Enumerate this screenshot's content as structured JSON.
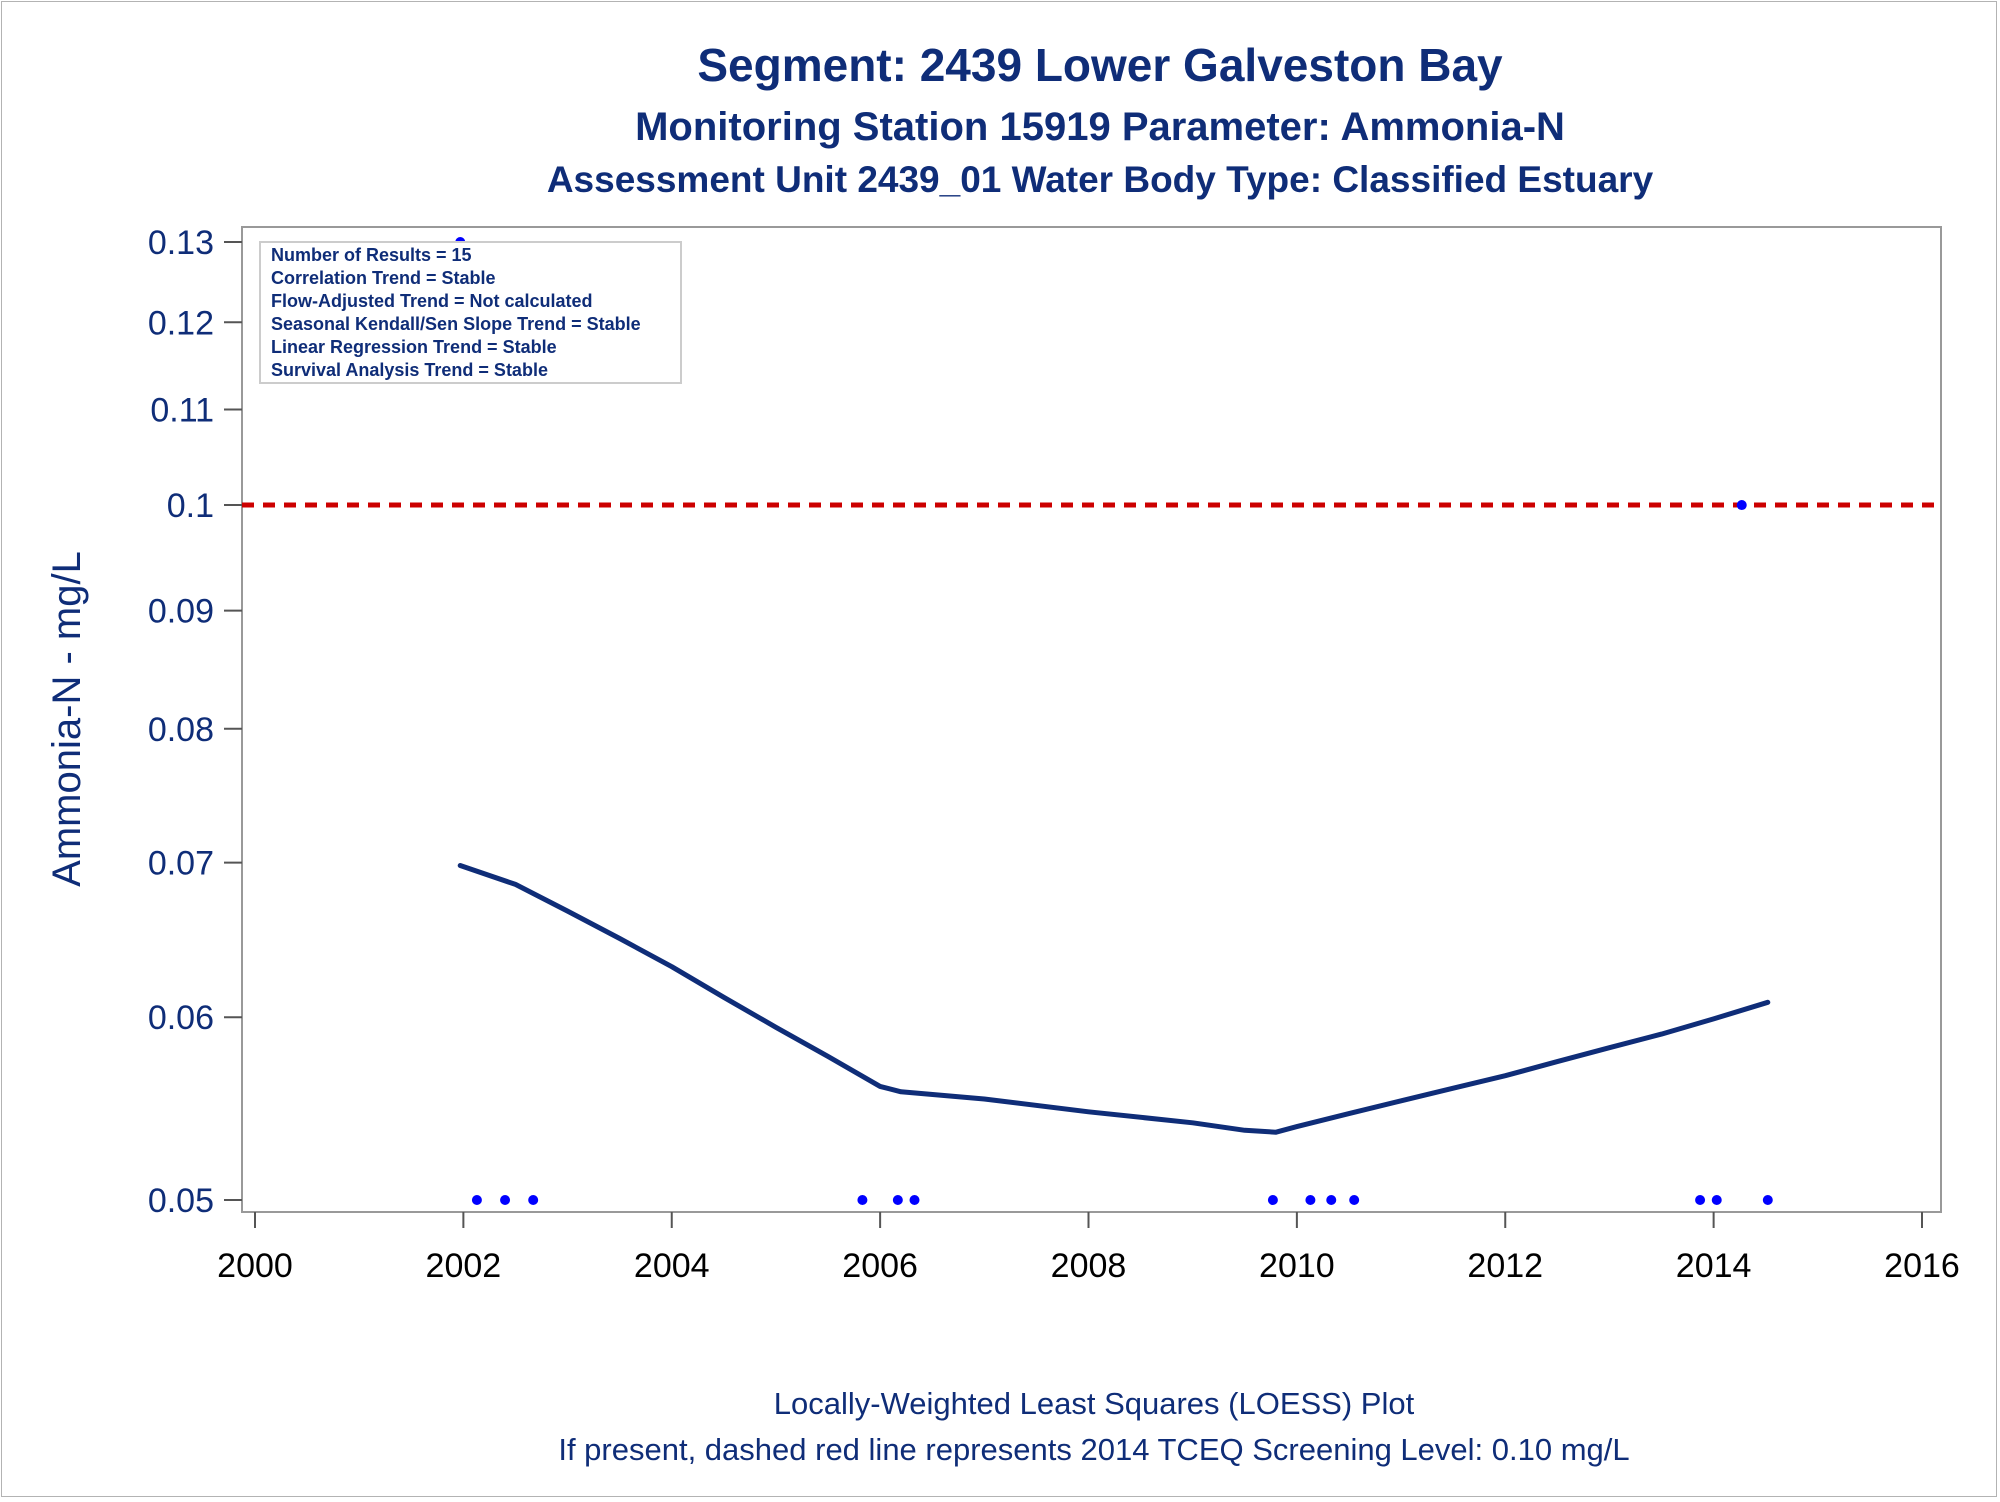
{
  "chart_data": {
    "type": "scatter",
    "title": "Segment: 2439  Lower Galveston Bay",
    "subtitle": "Monitoring Station 15919 Parameter: Ammonia-N",
    "subtitle2": "Assessment Unit 2439_01   Water Body Type: Classified Estuary",
    "xlabel": "",
    "ylabel": "Ammonia-N - mg/L",
    "y_scale": "log",
    "xlim": [
      2000,
      2016
    ],
    "ylim": [
      0.05,
      0.13
    ],
    "x_ticks": [
      2000,
      2002,
      2004,
      2006,
      2008,
      2010,
      2012,
      2014,
      2016
    ],
    "y_ticks": [
      0.05,
      0.06,
      0.07,
      0.08,
      0.09,
      0.1,
      0.11,
      0.12,
      0.13
    ],
    "y_tick_labels": [
      "0.05",
      "0.06",
      "0.07",
      "0.08",
      "0.09",
      "0.1",
      "0.11",
      "0.12",
      "0.13"
    ],
    "series": [
      {
        "type": "scatter",
        "color": "#0000ff",
        "points": [
          {
            "x": 2001.97,
            "y": 0.13
          },
          {
            "x": 2002.13,
            "y": 0.05
          },
          {
            "x": 2002.4,
            "y": 0.05
          },
          {
            "x": 2002.67,
            "y": 0.05
          },
          {
            "x": 2005.83,
            "y": 0.05
          },
          {
            "x": 2006.17,
            "y": 0.05
          },
          {
            "x": 2006.33,
            "y": 0.05
          },
          {
            "x": 2009.77,
            "y": 0.05
          },
          {
            "x": 2010.13,
            "y": 0.05
          },
          {
            "x": 2010.33,
            "y": 0.05
          },
          {
            "x": 2010.55,
            "y": 0.05
          },
          {
            "x": 2013.87,
            "y": 0.05
          },
          {
            "x": 2014.03,
            "y": 0.05
          },
          {
            "x": 2014.27,
            "y": 0.1
          },
          {
            "x": 2014.52,
            "y": 0.05
          }
        ]
      },
      {
        "type": "line",
        "color": "#0f2d78",
        "x": [
          2001.97,
          2002.5,
          2003,
          2003.5,
          2004,
          2004.5,
          2005,
          2005.5,
          2006,
          2006.2,
          2007,
          2008,
          2009,
          2009.5,
          2009.8,
          2010,
          2010.5,
          2011,
          2011.5,
          2012,
          2012.5,
          2013,
          2013.5,
          2014,
          2014.52
        ],
        "y": [
          0.0698,
          0.0685,
          0.0667,
          0.0649,
          0.0631,
          0.0612,
          0.0594,
          0.0577,
          0.056,
          0.0557,
          0.0553,
          0.0546,
          0.054,
          0.0536,
          0.0535,
          0.0538,
          0.0545,
          0.0552,
          0.0559,
          0.0566,
          0.0574,
          0.0582,
          0.059,
          0.0599,
          0.0609
        ]
      }
    ],
    "reference_line": {
      "y": 0.1,
      "color": "#cc0000",
      "style": "dashed"
    },
    "grid": false,
    "inset_box": {
      "position": "top-left",
      "lines": [
        "Number of Results = 15",
        "Correlation Trend = Stable",
        "Flow-Adjusted Trend = Not calculated",
        "Seasonal Kendall/Sen Slope Trend = Stable",
        "Linear Regression Trend = Stable",
        "Survival Analysis Trend = Stable"
      ]
    },
    "footnotes": [
      "Locally-Weighted Least Squares (LOESS) Plot",
      "If present, dashed red line represents 2014 TCEQ Screening Level: 0.10 mg/L"
    ]
  }
}
